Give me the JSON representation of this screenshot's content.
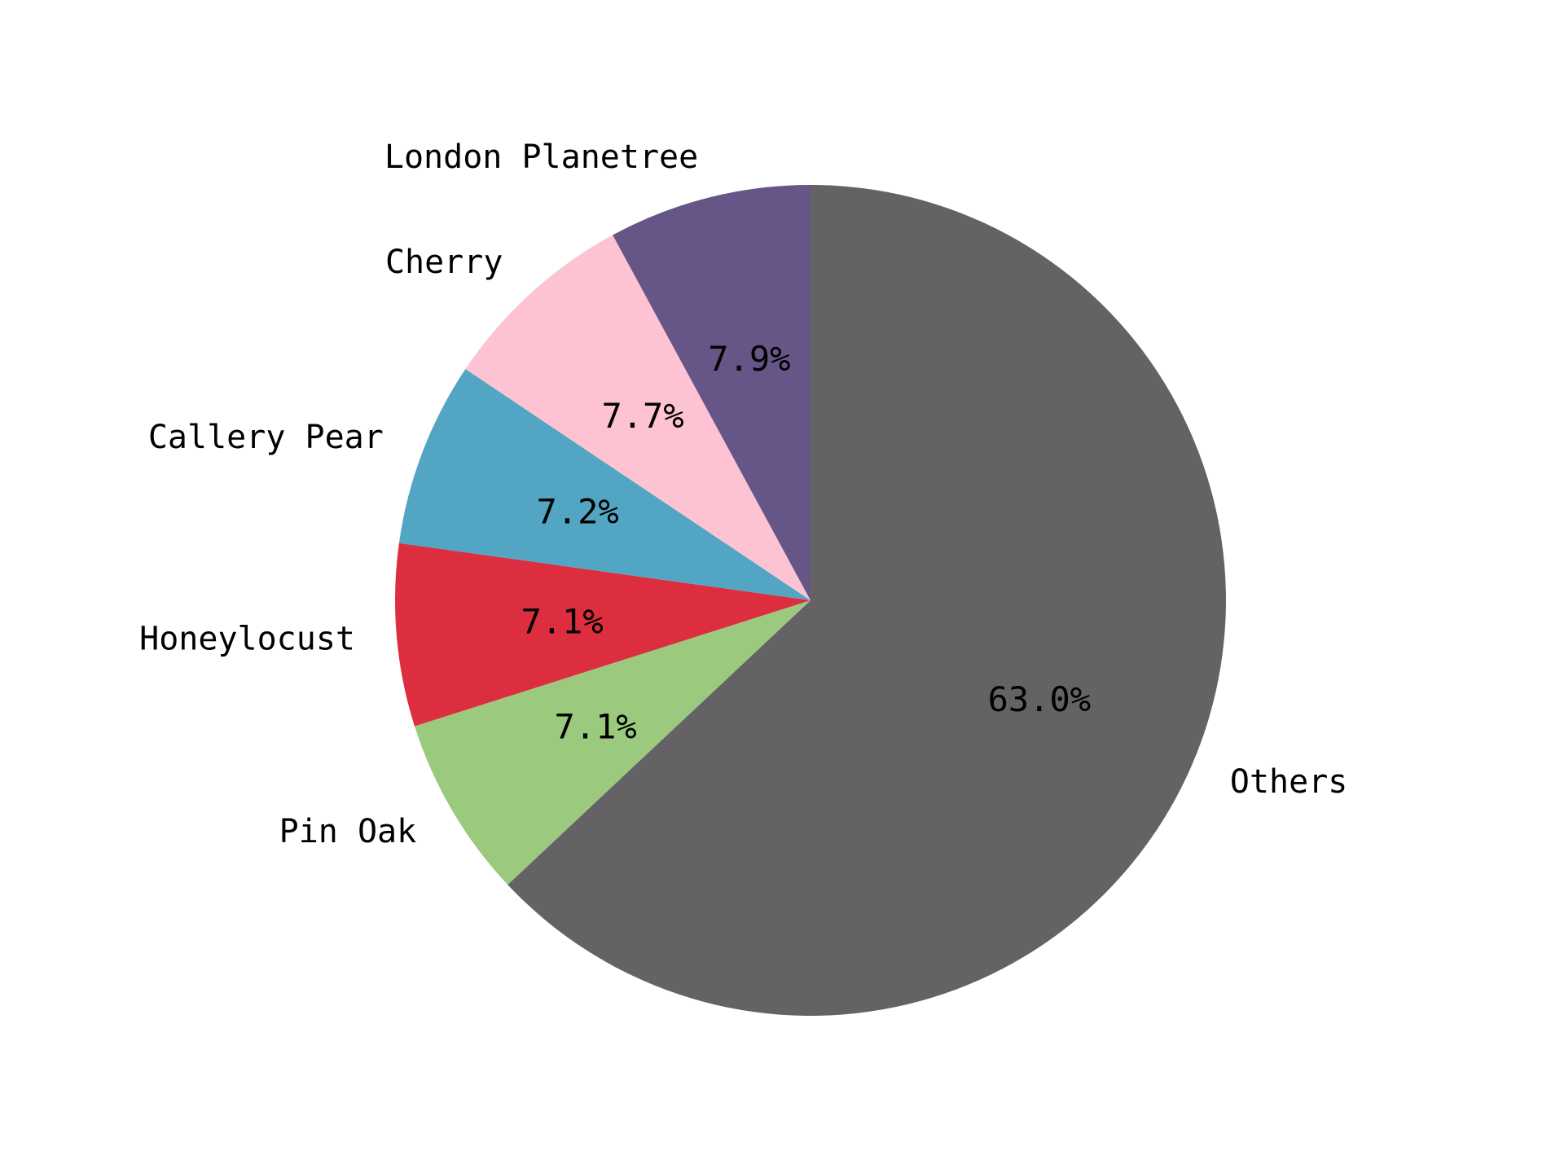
{
  "chart_data": {
    "type": "pie",
    "categories": [
      "Others",
      "London Planetree",
      "Cherry",
      "Callery Pear",
      "Honeylocust",
      "Pin Oak"
    ],
    "values": [
      63.0,
      7.9,
      7.7,
      7.2,
      7.1,
      7.1
    ],
    "value_labels": [
      "63.0%",
      "7.9%",
      "7.7%",
      "7.2%",
      "7.1%",
      "7.1%"
    ],
    "colors": [
      "#646265",
      "#665687",
      "#fdc3d2",
      "#52a6c4",
      "#dd2e3f",
      "#9bca7e"
    ],
    "start_angle_deg": 90,
    "direction": "clockwise-from-top for Others, counter-clockwise overall",
    "title": "",
    "legend": "none"
  }
}
